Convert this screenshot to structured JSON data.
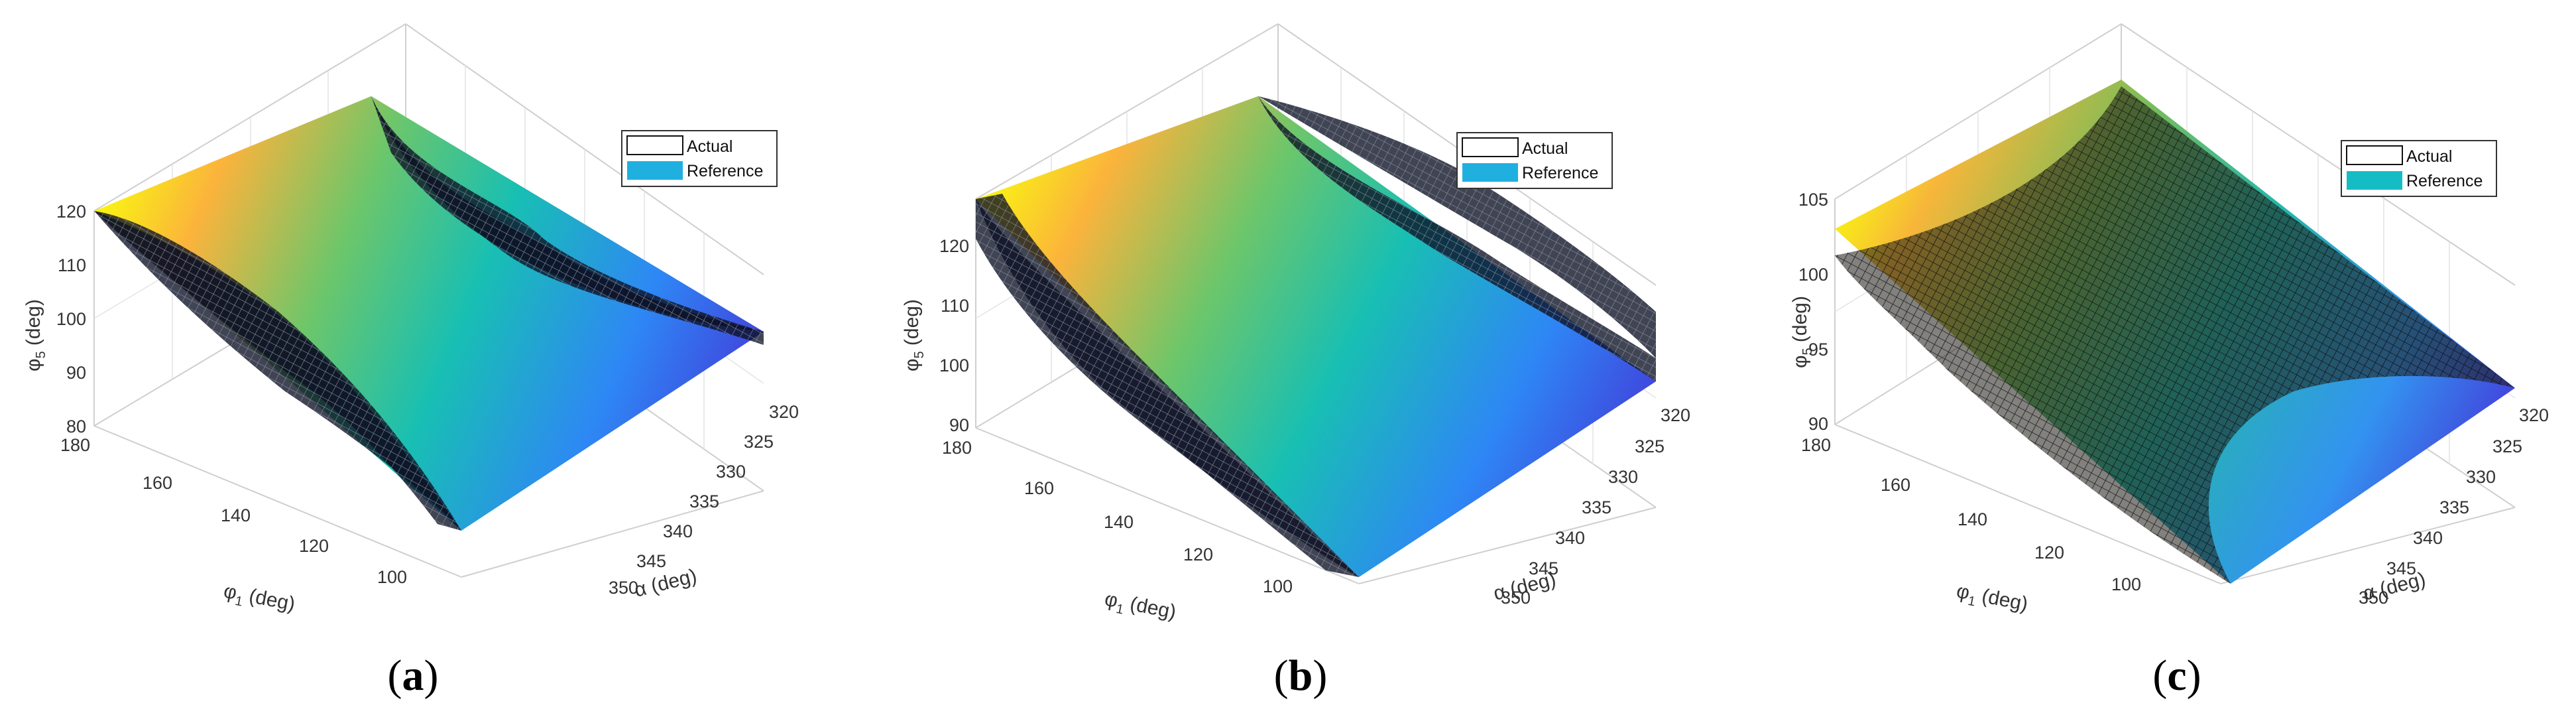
{
  "figure": {
    "panels": [
      {
        "panel_label": [
          "(",
          "a",
          ")"
        ],
        "legend": {
          "actual": "Actual",
          "reference": "Reference"
        },
        "colors": {
          "reference": "#1fb0e0"
        },
        "axes": {
          "z_label": [
            "φ",
            "5",
            " (deg)"
          ],
          "y_label": [
            "φ",
            "1",
            " (deg)"
          ],
          "x_label": "α (deg)",
          "z_ticks": [
            "120",
            "110",
            "100",
            "90",
            "80"
          ],
          "y_ticks": [
            "180",
            "160",
            "140",
            "120",
            "100"
          ],
          "x_ticks": [
            "320",
            "325",
            "330",
            "335",
            "340",
            "345",
            "350"
          ]
        }
      },
      {
        "panel_label": [
          "(",
          "b",
          ")"
        ],
        "legend": {
          "actual": "Actual",
          "reference": "Reference"
        },
        "colors": {
          "reference": "#1fb0e0"
        },
        "axes": {
          "z_label": [
            "φ",
            "5",
            " (deg)"
          ],
          "y_label": [
            "φ",
            "1",
            " (deg)"
          ],
          "x_label": "α (deg)",
          "z_ticks": [
            "120",
            "110",
            "100",
            "90"
          ],
          "y_ticks": [
            "180",
            "160",
            "140",
            "120",
            "100"
          ],
          "x_ticks": [
            "320",
            "325",
            "330",
            "335",
            "340",
            "345",
            "350"
          ]
        }
      },
      {
        "panel_label": [
          "(",
          "c",
          ")"
        ],
        "legend": {
          "actual": "Actual",
          "reference": "Reference"
        },
        "colors": {
          "reference": "#16bcc4"
        },
        "axes": {
          "z_label": [
            "φ",
            "5",
            " (deg)"
          ],
          "y_label": [
            "φ",
            "1",
            " (deg)"
          ],
          "x_label": "α (deg)",
          "z_ticks": [
            "105",
            "100",
            "95",
            "90"
          ],
          "y_ticks": [
            "180",
            "160",
            "140",
            "120",
            "100"
          ],
          "x_ticks": [
            "320",
            "325",
            "330",
            "335",
            "340",
            "345",
            "350"
          ]
        }
      }
    ]
  },
  "chart_data": [
    {
      "type": "surface",
      "xlabel": "α (deg)",
      "ylabel": "φ1 (deg)",
      "zlabel": "φ5 (deg)",
      "xlim": [
        320,
        350
      ],
      "ylim": [
        90,
        180
      ],
      "zlim": [
        80,
        120
      ],
      "series": [
        {
          "name": "Actual"
        },
        {
          "name": "Reference"
        }
      ],
      "colormap": "parula",
      "z_range_estimate": [
        83,
        120
      ]
    },
    {
      "type": "surface",
      "xlabel": "α (deg)",
      "ylabel": "φ1 (deg)",
      "zlabel": "φ5 (deg)",
      "xlim": [
        320,
        350
      ],
      "ylim": [
        90,
        180
      ],
      "zlim": [
        90,
        125
      ],
      "series": [
        {
          "name": "Actual"
        },
        {
          "name": "Reference"
        }
      ],
      "colormap": "parula",
      "z_range_estimate": [
        90,
        124
      ]
    },
    {
      "type": "surface",
      "xlabel": "α (deg)",
      "ylabel": "φ1 (deg)",
      "zlabel": "φ5 (deg)",
      "xlim": [
        320,
        350
      ],
      "ylim": [
        90,
        180
      ],
      "zlim": [
        90,
        105
      ],
      "series": [
        {
          "name": "Actual"
        },
        {
          "name": "Reference"
        }
      ],
      "colormap": "parula",
      "z_range_estimate": [
        90,
        102
      ]
    }
  ]
}
